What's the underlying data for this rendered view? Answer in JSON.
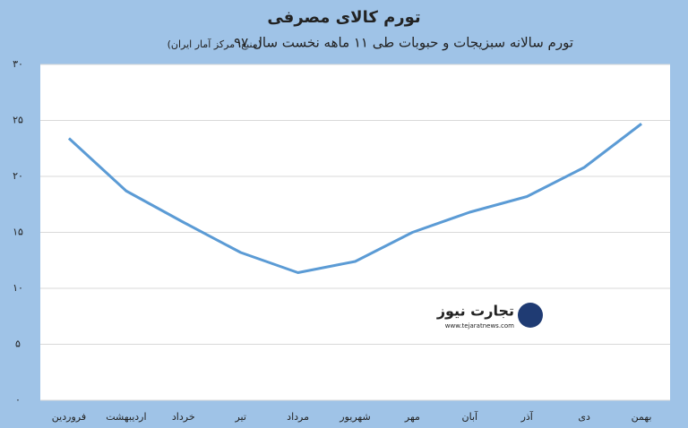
{
  "chart_data": {
    "type": "line",
    "title": "تورم کالای مصرفی",
    "subtitle": "تورم سالانه سبزیجات و حبوبات طی ۱۱ ماهه نخست سال ۹۷",
    "source": "(منبع: مرکز آمار ایران)",
    "categories": [
      "فروردین",
      "اردیبهشت",
      "خرداد",
      "تیر",
      "مرداد",
      "شهریور",
      "مهر",
      "آبان",
      "آذر",
      "دی",
      "بهمن"
    ],
    "values": [
      23.4,
      18.7,
      15.9,
      13.2,
      11.4,
      12.4,
      15.0,
      16.8,
      18.2,
      20.8,
      24.7
    ],
    "color": "#5b9bd5",
    "ylim": [
      0,
      30
    ],
    "yticks": [
      {
        "value": 0,
        "label": "۰"
      },
      {
        "value": 5,
        "label": "۵"
      },
      {
        "value": 10,
        "label": "۱۰"
      },
      {
        "value": 15,
        "label": "۱۵"
      },
      {
        "value": 20,
        "label": "۲۰"
      },
      {
        "value": 25,
        "label": "۲۵"
      },
      {
        "value": 30,
        "label": "۳۰"
      }
    ],
    "grid": true,
    "logo": {
      "name": "تجارت نیوز",
      "url": "www.tejaratnews.com"
    }
  }
}
